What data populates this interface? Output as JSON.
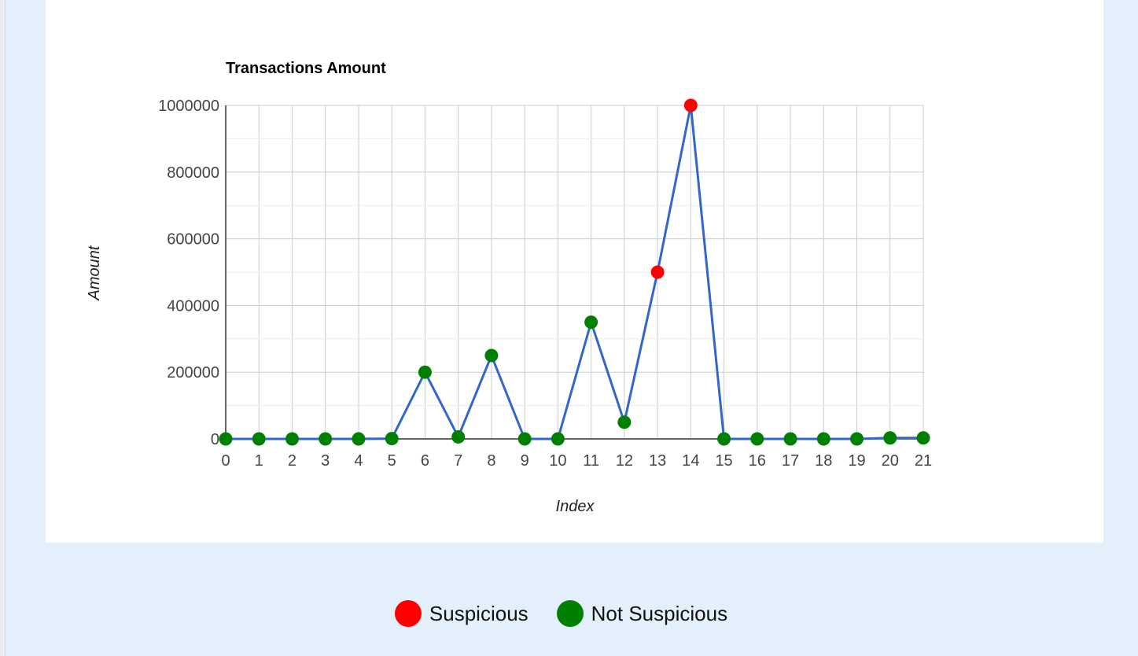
{
  "chart_data": {
    "type": "line",
    "title": "Transactions Amount",
    "xlabel": "Index",
    "ylabel": "Amount",
    "x": [
      0,
      1,
      2,
      3,
      4,
      5,
      6,
      7,
      8,
      9,
      10,
      11,
      12,
      13,
      14,
      15,
      16,
      17,
      18,
      19,
      20,
      21
    ],
    "values": [
      0,
      0,
      0,
      0,
      0,
      1000,
      200000,
      6000,
      250000,
      0,
      0,
      350000,
      50000,
      500000,
      1000000,
      0,
      0,
      0,
      0,
      0,
      3000,
      3000
    ],
    "point_status": [
      "not_suspicious",
      "not_suspicious",
      "not_suspicious",
      "not_suspicious",
      "not_suspicious",
      "not_suspicious",
      "not_suspicious",
      "not_suspicious",
      "not_suspicious",
      "not_suspicious",
      "not_suspicious",
      "not_suspicious",
      "not_suspicious",
      "suspicious",
      "suspicious",
      "not_suspicious",
      "not_suspicious",
      "not_suspicious",
      "not_suspicious",
      "not_suspicious",
      "not_suspicious",
      "not_suspicious"
    ],
    "ylim": [
      0,
      1000000
    ],
    "y_ticks": [
      0,
      200000,
      400000,
      600000,
      800000,
      1000000
    ],
    "y_tick_labels": [
      "0",
      "200000",
      "400000",
      "600000",
      "800000",
      "1000000"
    ],
    "x_tick_labels": [
      "0",
      "1",
      "2",
      "3",
      "4",
      "5",
      "6",
      "7",
      "8",
      "9",
      "10",
      "11",
      "12",
      "13",
      "14",
      "15",
      "16",
      "17",
      "18",
      "19",
      "20",
      "21"
    ],
    "grid": true,
    "legend_position": "bottom",
    "colors": {
      "line": "#3366cc",
      "suspicious": "#ff0000",
      "not_suspicious": "#008000"
    }
  },
  "legend": {
    "items": [
      {
        "key": "suspicious",
        "label": "Suspicious",
        "color": "#ff0000"
      },
      {
        "key": "not_suspicious",
        "label": "Not Suspicious",
        "color": "#008000"
      }
    ]
  }
}
